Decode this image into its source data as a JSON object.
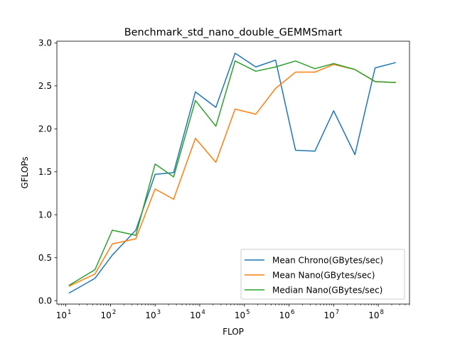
{
  "chart_data": {
    "type": "line",
    "title": "Benchmark_std_nano_double_GEMMSmart",
    "xlabel": "FLOP",
    "ylabel": "GFLOPs",
    "xscale": "log",
    "xlim": [
      6.3,
      500000000
    ],
    "ylim": [
      -0.04,
      3.02
    ],
    "yticks": [
      0.0,
      0.5,
      1.0,
      1.5,
      2.0,
      2.5,
      3.0
    ],
    "ytick_labels": [
      "0.0",
      "0.5",
      "1.0",
      "1.5",
      "2.0",
      "2.5",
      "3.0"
    ],
    "xticks": [
      10,
      100,
      1000,
      10000,
      100000,
      1000000,
      10000000,
      100000000
    ],
    "xtick_labels": [
      {
        "base": "10",
        "exp": "1"
      },
      {
        "base": "10",
        "exp": "2"
      },
      {
        "base": "10",
        "exp": "3"
      },
      {
        "base": "10",
        "exp": "4"
      },
      {
        "base": "10",
        "exp": "5"
      },
      {
        "base": "10",
        "exp": "6"
      },
      {
        "base": "10",
        "exp": "7"
      },
      {
        "base": "10",
        "exp": "8"
      }
    ],
    "grid": false,
    "legend_position": "lower-right",
    "x": [
      12,
      45,
      110,
      370,
      1000,
      2600,
      8000,
      23000,
      62000,
      180000,
      500000,
      1400000,
      3800000,
      10000000,
      30000000,
      85000000,
      240000000
    ],
    "series": [
      {
        "name": "Mean Chrono(GBytes/sec)",
        "color": "#1f77b4",
        "values": [
          0.09,
          0.26,
          0.53,
          0.82,
          1.47,
          1.49,
          2.43,
          2.25,
          2.88,
          2.72,
          2.8,
          1.75,
          1.74,
          2.21,
          1.7,
          2.71,
          2.77
        ]
      },
      {
        "name": "Mean Nano(GBytes/sec)",
        "color": "#ff7f0e",
        "values": [
          0.17,
          0.31,
          0.66,
          0.72,
          1.3,
          1.18,
          1.89,
          1.61,
          2.23,
          2.17,
          2.47,
          2.66,
          2.66,
          2.75,
          2.69,
          2.55,
          2.54
        ]
      },
      {
        "name": "Median Nano(GBytes/sec)",
        "color": "#2ca02c",
        "values": [
          0.18,
          0.36,
          0.82,
          0.76,
          1.59,
          1.44,
          2.33,
          2.03,
          2.79,
          2.67,
          2.72,
          2.79,
          2.7,
          2.76,
          2.69,
          2.55,
          2.54
        ]
      }
    ]
  }
}
